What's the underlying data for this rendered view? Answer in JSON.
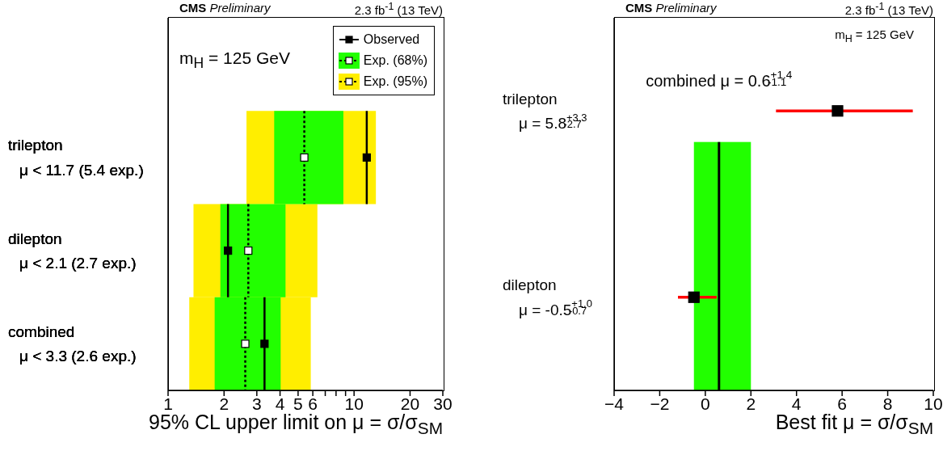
{
  "chart_data": [
    {
      "type": "bar",
      "title": "CMS Preliminary",
      "subtitle": "2.3 fb$^{-1}$ (13 TeV)",
      "xlabel": "95% CL upper limit on μ = σ/σ$_{SM}$",
      "annotations": [
        "m$_{H}$ = 125 GeV"
      ],
      "orientation": "horizontal",
      "log": "x",
      "legend": "top right",
      "marker": "square",
      "categories": [
        null,
        "trilepton\nμ < 11.7 (5.4 exp.)",
        "dilepton\nμ < 2.1 (2.7 exp.)",
        "combined\nμ < 3.3 (2.6 exp.)"
      ],
      "xlim": [
        1,
        30
      ],
      "xticks": [
        1,
        2,
        3,
        4,
        5,
        6,
        {
          "value": 7,
          "label": null
        },
        {
          "value": 8,
          "label": null
        },
        {
          "value": 9,
          "label": null
        },
        10,
        20,
        30
      ],
      "series": [
        {
          "name": "Exp. (95%)",
          "type": "bar",
          "color": "#ffee00",
          "base": [
            null,
            2.64,
            1.37,
            1.3
          ],
          "values": [
            null,
            10.46,
            4.98,
            4.55
          ]
        },
        {
          "name": "Exp. (68%)",
          "type": "bar",
          "color": "#22ff00",
          "base": [
            null,
            3.72,
            1.91,
            1.78
          ],
          "values": [
            null,
            5.04,
            2.37,
            2.25
          ]
        },
        {
          "type": "scatter",
          "color": "#000000",
          "line_style": "dotted",
          "values": [
            null,
            5.4,
            2.7,
            2.6
          ]
        },
        {
          "name": "Observed",
          "type": "scatter",
          "color": "#000000",
          "line_style": "solid",
          "values": [
            null,
            11.7,
            2.1,
            3.3
          ]
        }
      ]
    },
    {
      "type": "scatter",
      "title": "CMS Preliminary",
      "subtitle": "2.3 fb$^{-1}$ (13 TeV)",
      "xlabel": "Best fit μ = σ/σ$_{SM}$",
      "annotations": [
        "m$_{H}$ = 125 GeV"
      ],
      "orientation": "horizontal",
      "marker": "square",
      "categories": [
        null,
        "trilepton\nμ = 5.8$^{+3.3}$$_{-2.7}$",
        "dilepton\nμ = -0.5$^{+1.0}$$_{-0.7}$"
      ],
      "xlim": [
        -4,
        10
      ],
      "xticks": [
        {
          "value": -4,
          "label": "−4"
        },
        {
          "value": -2,
          "label": "−2"
        },
        0,
        2,
        4,
        6,
        8,
        10
      ],
      "ref_lines": [
        {
          "axis": "x",
          "value": 0.6,
          "label": "combined μ = 0.6$^{+1.4}$$_{-1.1}$",
          "color": "#000000"
        }
      ],
      "bands": [
        {
          "axis": "x",
          "from": -0.5,
          "to": 2.0,
          "color": "#22ff00"
        }
      ],
      "series": [
        {
          "color": "#000000",
          "values": [
            null,
            5.8,
            -0.5
          ],
          "errors": [
            null,
            [
              3.1,
              9.1
            ],
            [
              -1.2,
              0.5
            ]
          ]
        }
      ]
    }
  ]
}
